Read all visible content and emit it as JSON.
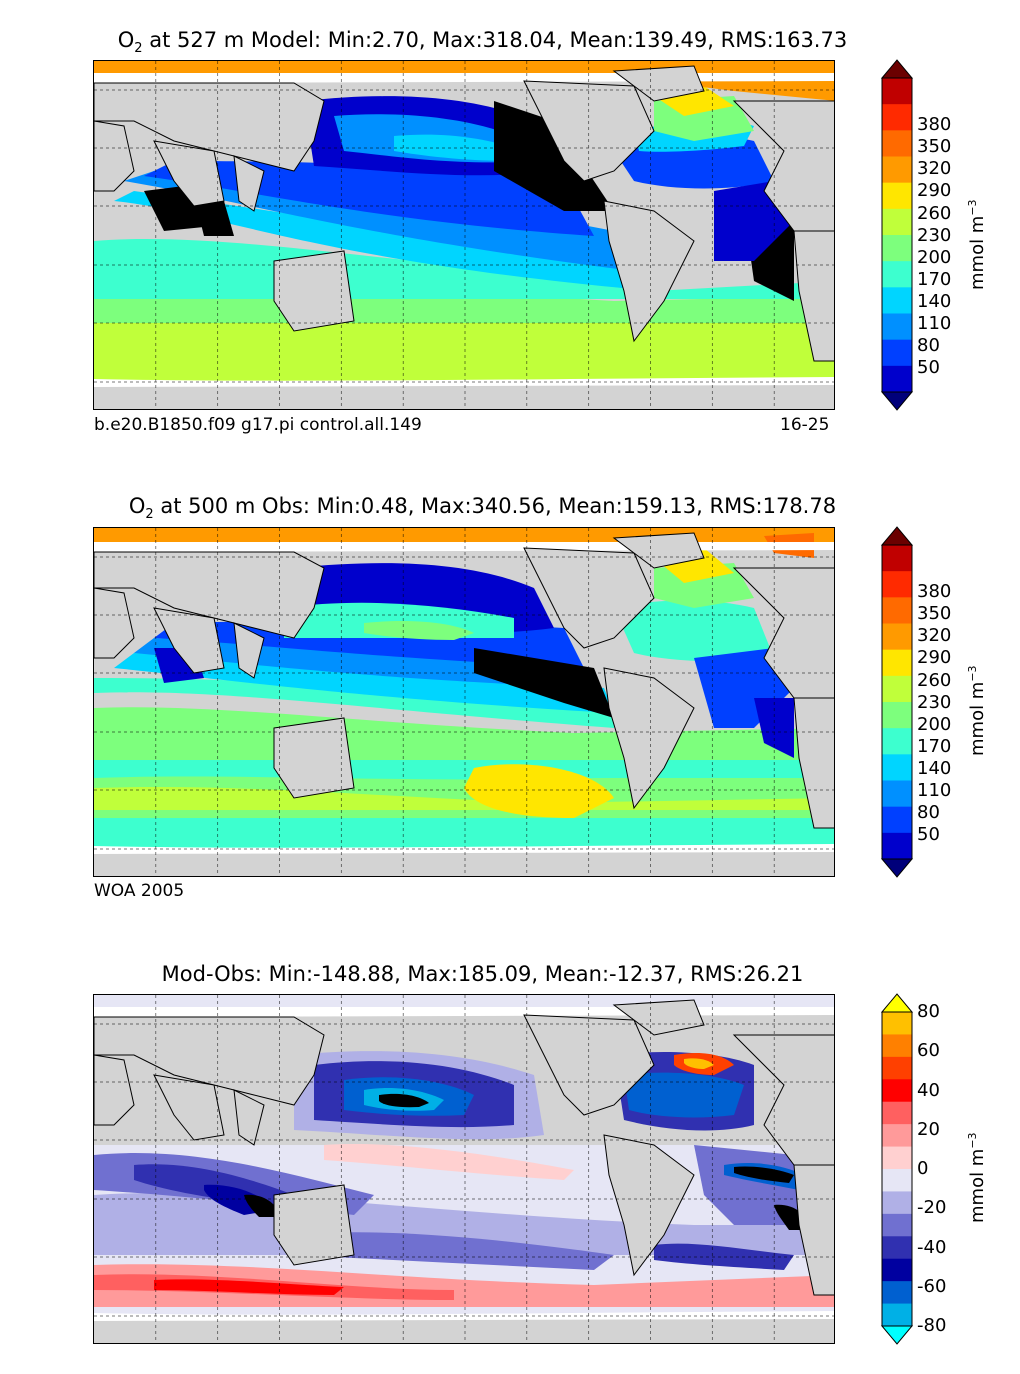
{
  "chart_data": [
    {
      "type": "heatmap",
      "title_prefix": "O",
      "title_sub": "2",
      "title_rest": " at 527 m Model: Min:2.70, Max:318.04, Mean:139.49, RMS:163.73",
      "caption_left": "b.e20.B1850.f09 g17.pi control.all.149",
      "caption_right": "16-25",
      "colorbar": {
        "ticks": [
          "380",
          "350",
          "320",
          "290",
          "260",
          "230",
          "200",
          "170",
          "140",
          "110",
          "80",
          "50"
        ],
        "unit_main": "mmol m",
        "unit_sup": "−3",
        "extend": "both",
        "colors": [
          "#6b0000",
          "#c00000",
          "#ff2a00",
          "#ff6a00",
          "#ff9a00",
          "#ffe600",
          "#c0ff3a",
          "#7dff7d",
          "#3dffcf",
          "#00d5ff",
          "#0090ff",
          "#0040ff",
          "#0000cc",
          "#00007a"
        ]
      }
    },
    {
      "type": "heatmap",
      "title_prefix": "O",
      "title_sub": "2",
      "title_rest": " at 500 m Obs: Min:0.48, Max:340.56, Mean:159.13, RMS:178.78",
      "caption_left": "WOA 2005",
      "caption_right": "",
      "colorbar": {
        "ticks": [
          "380",
          "350",
          "320",
          "290",
          "260",
          "230",
          "200",
          "170",
          "140",
          "110",
          "80",
          "50"
        ],
        "unit_main": "mmol m",
        "unit_sup": "−3",
        "extend": "both",
        "colors": [
          "#6b0000",
          "#c00000",
          "#ff2a00",
          "#ff6a00",
          "#ff9a00",
          "#ffe600",
          "#c0ff3a",
          "#7dff7d",
          "#3dffcf",
          "#00d5ff",
          "#0090ff",
          "#0040ff",
          "#0000cc",
          "#00007a"
        ]
      }
    },
    {
      "type": "heatmap",
      "title_prefix": "",
      "title_sub": "",
      "title_rest": "Mod-Obs: Min:-148.88, Max:185.09, Mean:-12.37, RMS:26.21",
      "caption_left": "",
      "caption_right": "",
      "colorbar": {
        "ticks": [
          "80",
          "60",
          "40",
          "20",
          "0",
          "-20",
          "-40",
          "-60",
          "-80"
        ],
        "unit_main": "mmol m",
        "unit_sup": "−3",
        "extend": "both",
        "colors": [
          "#ffff00",
          "#ffc000",
          "#ff8000",
          "#ff4000",
          "#ff0000",
          "#ff6060",
          "#ff9a9a",
          "#ffd0d0",
          "#e6e6f5",
          "#b0b0e6",
          "#7070d0",
          "#3030b0",
          "#0000a0",
          "#0060d0",
          "#00b0e6",
          "#00ffff"
        ]
      }
    }
  ]
}
